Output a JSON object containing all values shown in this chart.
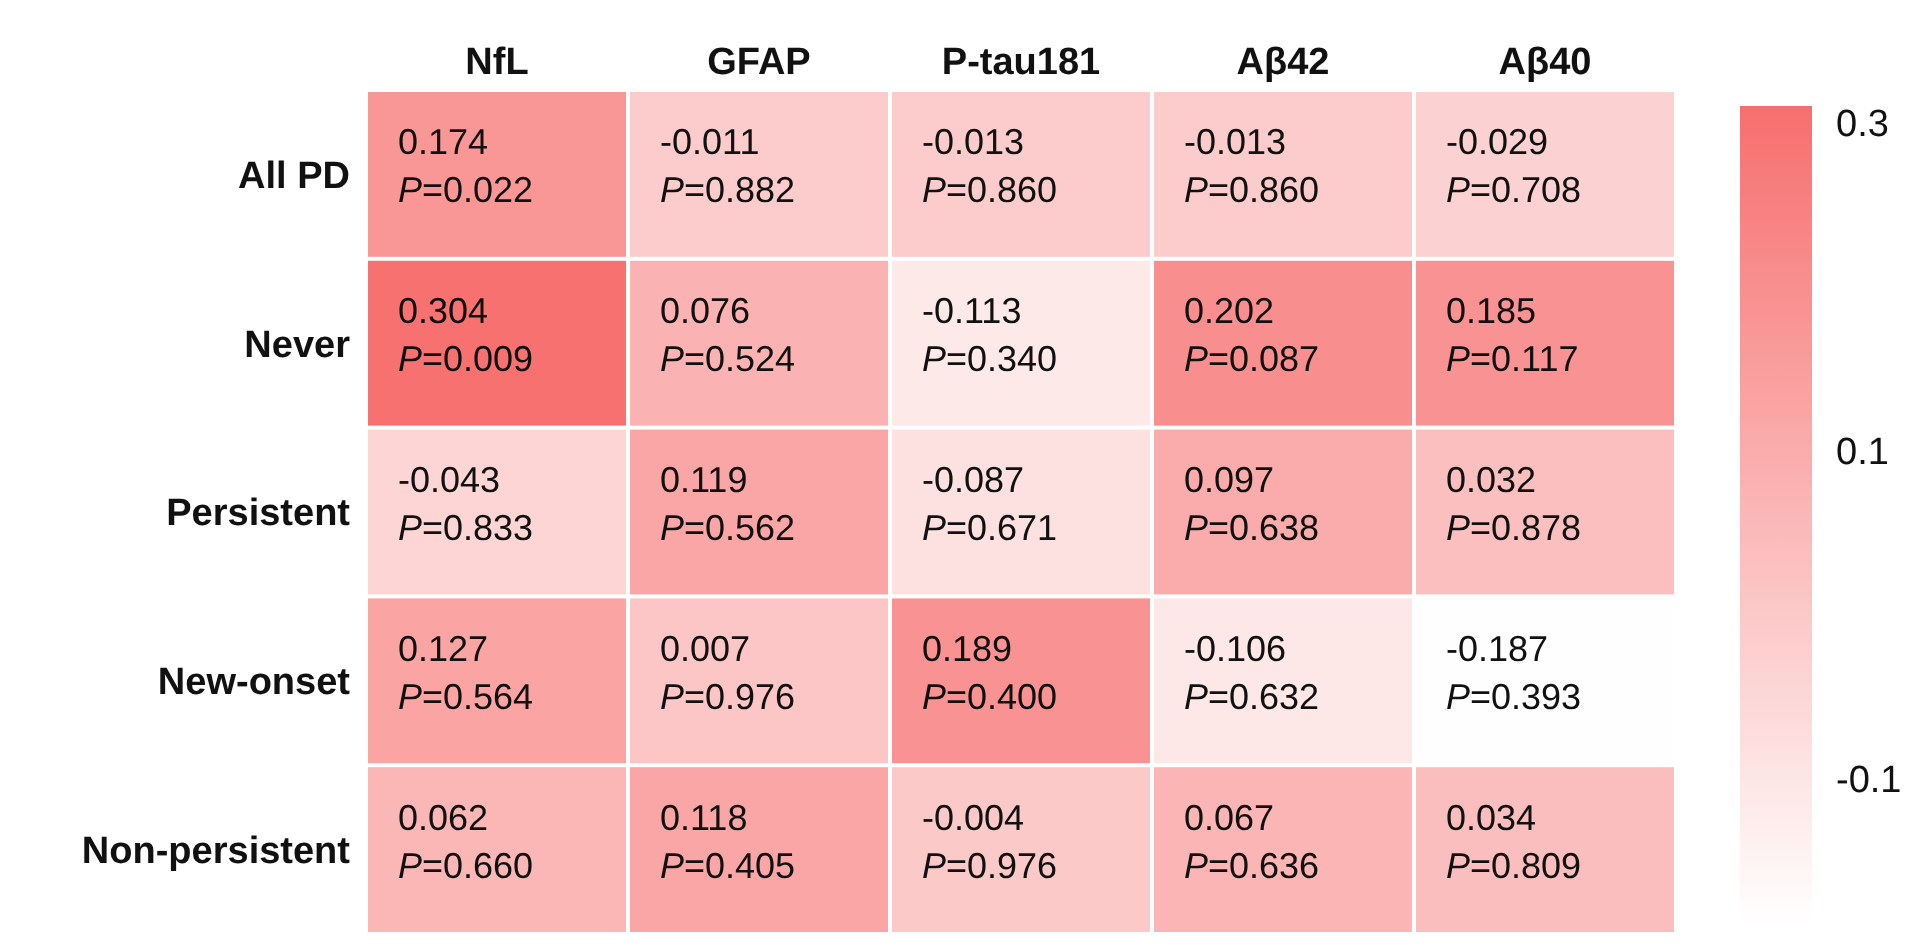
{
  "chart_data": {
    "type": "heatmap",
    "categories": [
      "NfL",
      "GFAP",
      "P-tau181",
      "Aβ42",
      "Aβ40"
    ],
    "y_categories": [
      "All PD",
      "Never",
      "Persistent",
      "New-onset",
      "Non-persistent"
    ],
    "cells": [
      [
        0.174,
        -0.011,
        -0.013,
        -0.013,
        -0.029
      ],
      [
        0.304,
        0.076,
        -0.113,
        0.202,
        0.185
      ],
      [
        -0.043,
        0.119,
        -0.087,
        0.097,
        0.032
      ],
      [
        0.127,
        0.007,
        0.189,
        -0.106,
        -0.187
      ],
      [
        0.062,
        0.118,
        -0.004,
        0.067,
        0.034
      ]
    ],
    "cell_labels": [
      [
        "0.174\nP=0.022",
        "-0.011\nP=0.882",
        "-0.013\nP=0.860",
        "-0.013\nP=0.860",
        "-0.029\nP=0.708"
      ],
      [
        "0.304\nP=0.009",
        "0.076\nP=0.524",
        "-0.113\nP=0.340",
        "0.202\nP=0.087",
        "0.185\nP=0.117"
      ],
      [
        "-0.043\nP=0.833",
        "0.119\nP=0.562",
        "-0.087\nP=0.671",
        "0.097\nP=0.638",
        "0.032\nP=0.878"
      ],
      [
        "0.127\nP=0.564",
        "0.007\nP=0.976",
        "0.189\nP=0.400",
        "-0.106\nP=0.632",
        "-0.187\nP=0.393"
      ],
      [
        "0.062\nP=0.660",
        "0.118\nP=0.405",
        "-0.004\nP=0.976",
        "0.067\nP=0.636",
        "0.034\nP=0.809"
      ]
    ],
    "clim": [
      -0.19,
      0.31
    ],
    "cticks": [
      0.3,
      0.1,
      -0.1
    ],
    "color": "#f76f6f"
  }
}
